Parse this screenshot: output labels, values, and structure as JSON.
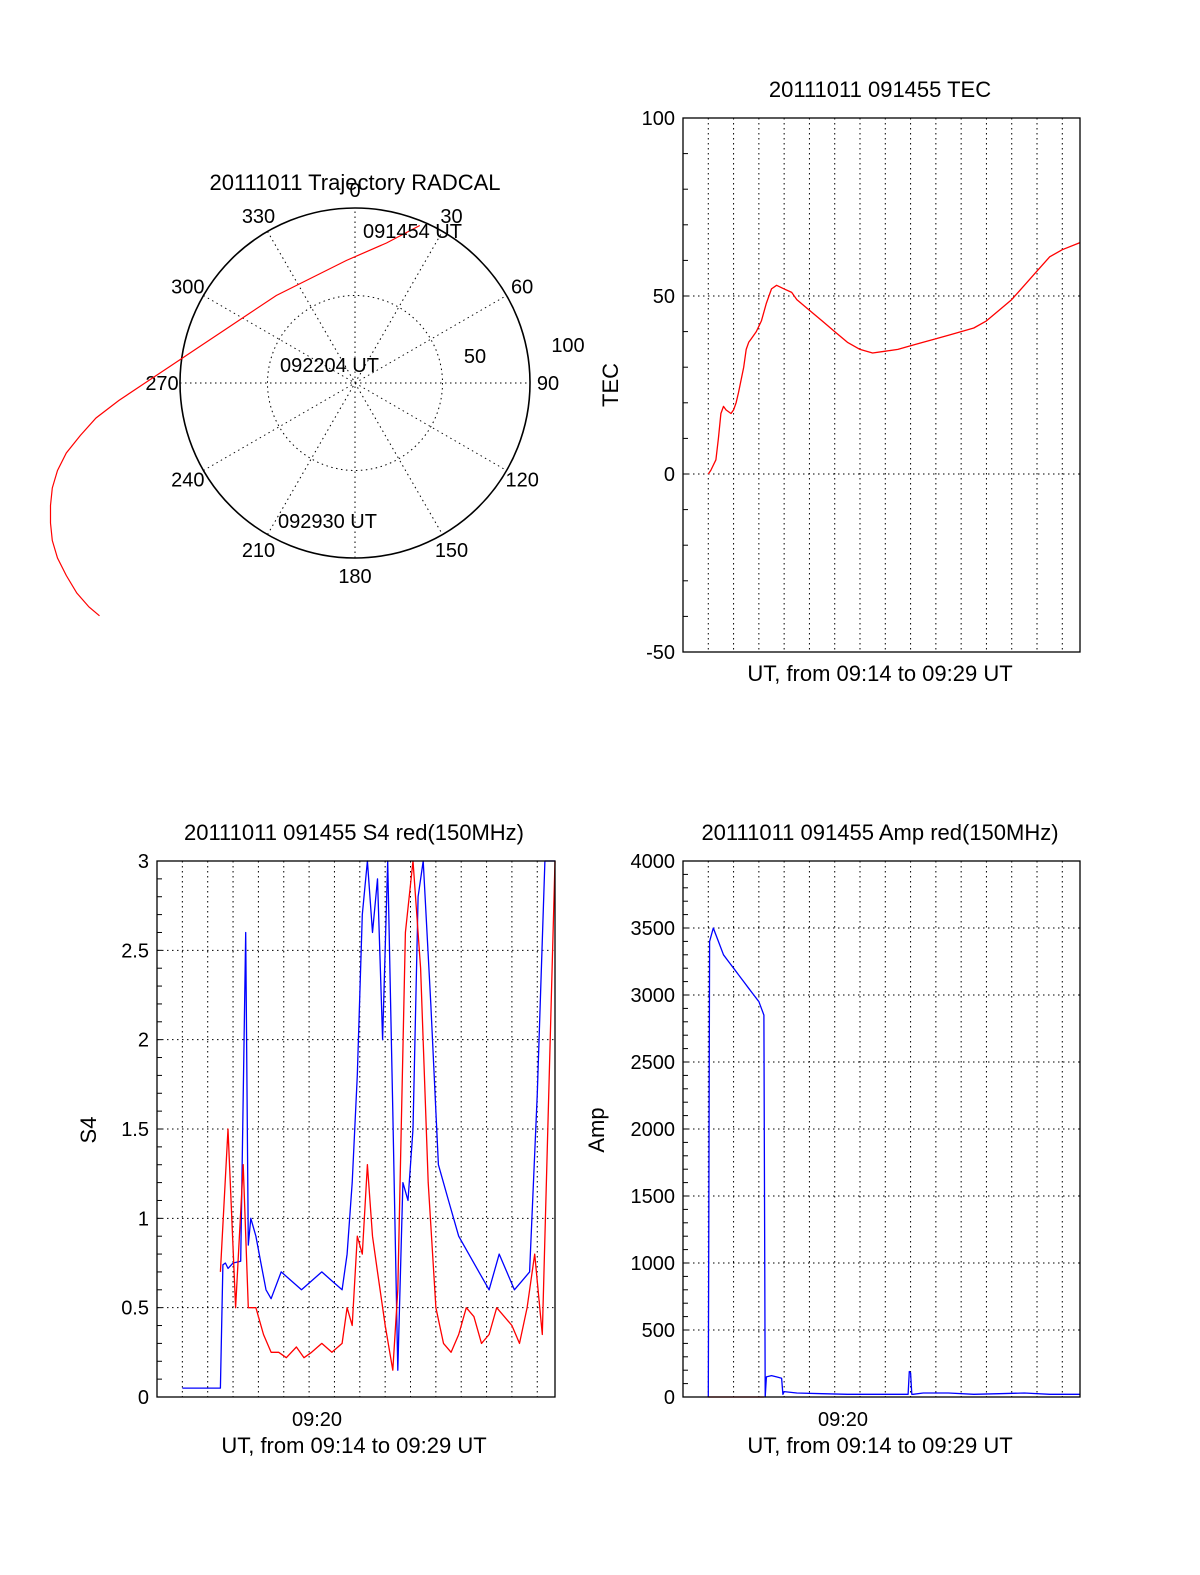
{
  "chart_data": [
    {
      "type": "polar-trajectory",
      "title": "20111011 Trajectory RADCAL",
      "angle_labels": [
        "0",
        "30",
        "60",
        "90",
        "120",
        "150",
        "180",
        "210",
        "240",
        "270",
        "300",
        "330"
      ],
      "radial_labels": [
        "50",
        "100"
      ],
      "r_max": 100,
      "annotations": [
        "091454 UT",
        "092204 UT",
        "092930 UT"
      ],
      "series": [
        {
          "color": "#ff0000",
          "points": [
            [
              37,
              90
            ],
            [
              18,
              80
            ],
            [
              -5,
              70
            ],
            [
              -25,
              60
            ],
            [
              -45,
              50
            ],
            [
              -60,
              40
            ],
            [
              -75,
              30
            ],
            [
              -90,
              20
            ],
            [
              -105,
              10
            ],
            [
              -120,
              0
            ],
            [
              -135,
              -10
            ],
            [
              -148,
              -20
            ],
            [
              -157,
              -30
            ],
            [
              -165,
              -40
            ],
            [
              -170,
              -50
            ],
            [
              -173,
              -60
            ],
            [
              -174,
              -70
            ],
            [
              -174,
              -80
            ],
            [
              -173,
              -90
            ],
            [
              -170,
              -100
            ],
            [
              -165,
              -110
            ],
            [
              -159,
              -120
            ],
            [
              -152,
              -128
            ],
            [
              -146,
              -133
            ]
          ]
        }
      ]
    },
    {
      "type": "line",
      "title": "20111011 091455 TEC",
      "xlabel": "UT, from 09:14 to 09:29 UT",
      "ylabel": "TEC",
      "x_range_min": [
        -0.5,
        15.2
      ],
      "ylim": [
        -50,
        100
      ],
      "yticks": [
        -50,
        0,
        50,
        100
      ],
      "grid": true,
      "series": [
        {
          "color": "#ff0000",
          "x": [
            0.5,
            0.6,
            0.8,
            0.9,
            1.0,
            1.1,
            1.2,
            1.4,
            1.5,
            1.6,
            1.7,
            1.9,
            2.0,
            2.1,
            2.2,
            2.4,
            2.6,
            2.8,
            3.0,
            3.2,
            3.5,
            3.8,
            4.0,
            4.5,
            5.0,
            5.5,
            6.0,
            6.5,
            7.0,
            7.5,
            8.0,
            8.5,
            9.0,
            9.5,
            10.0,
            10.5,
            11.0,
            11.5,
            12.0,
            12.5,
            13.0,
            13.5,
            14.0,
            14.5,
            15.2
          ],
          "y": [
            0,
            1,
            4,
            10,
            17,
            19,
            18,
            17,
            18,
            20,
            23,
            30,
            35,
            37,
            38,
            40,
            43,
            48,
            52,
            53,
            52,
            51,
            49,
            46,
            43,
            40,
            37,
            35,
            34,
            34.5,
            35,
            36,
            37,
            38,
            39,
            40,
            41,
            43,
            46,
            49,
            53,
            57,
            61,
            63,
            65
          ]
        }
      ]
    },
    {
      "type": "line",
      "title": "20111011 091455 S4 red(150MHz)",
      "xlabel": "UT, from 09:14 to 09:29 UT",
      "ylabel": "S4",
      "x_range_min": [
        -0.5,
        15.2
      ],
      "xtick_label": "09:20",
      "ylim": [
        0,
        3
      ],
      "yticks": [
        0,
        0.5,
        1,
        1.5,
        2,
        2.5,
        3
      ],
      "ytick_labels": [
        "0",
        "0.5",
        "1",
        "1.5",
        "2",
        "2.5",
        "3"
      ],
      "grid": true,
      "series": [
        {
          "color": "#0000ff",
          "x": [
            0.5,
            0.8,
            1.2,
            1.6,
            2.0,
            2.1,
            2.2,
            2.3,
            2.5,
            2.8,
            3.0,
            3.1,
            3.2,
            3.4,
            3.6,
            3.8,
            4.0,
            4.4,
            4.8,
            5.2,
            5.6,
            6.0,
            6.4,
            6.8,
            7.0,
            7.2,
            7.4,
            7.6,
            7.8,
            8.0,
            8.2,
            8.4,
            8.6,
            8.8,
            9.0,
            9.2,
            9.4,
            9.6,
            9.8,
            10.0,
            10.3,
            10.6,
            11.0,
            11.4,
            11.8,
            12.2,
            12.6,
            13.0,
            13.3,
            13.6,
            13.9,
            14.2,
            14.5,
            14.8,
            15.2
          ],
          "y": [
            0.05,
            0.05,
            0.05,
            0.05,
            0.05,
            0.74,
            0.75,
            0.72,
            0.75,
            0.76,
            2.6,
            0.85,
            1.0,
            0.9,
            0.75,
            0.6,
            0.55,
            0.7,
            0.65,
            0.6,
            0.65,
            0.7,
            0.65,
            0.6,
            0.8,
            1.2,
            1.8,
            2.7,
            3.0,
            2.6,
            2.9,
            2.0,
            3.0,
            1.6,
            0.15,
            1.2,
            1.1,
            1.5,
            2.8,
            3.0,
            2.2,
            1.3,
            1.1,
            0.9,
            0.8,
            0.7,
            0.6,
            0.8,
            0.7,
            0.6,
            0.65,
            0.7,
            1.7,
            3.0,
            3.0
          ]
        },
        {
          "color": "#ff0000",
          "x": [
            2.0,
            2.3,
            2.6,
            2.9,
            3.1,
            3.4,
            3.7,
            4.0,
            4.3,
            4.6,
            5.0,
            5.3,
            5.6,
            6.0,
            6.4,
            6.8,
            7.0,
            7.2,
            7.4,
            7.6,
            7.8,
            8.0,
            8.2,
            8.5,
            8.8,
            9.0,
            9.3,
            9.6,
            9.9,
            10.2,
            10.5,
            10.8,
            11.1,
            11.4,
            11.7,
            12.0,
            12.3,
            12.6,
            12.9,
            13.2,
            13.5,
            13.8,
            14.1,
            14.4,
            14.7,
            15.2
          ],
          "y": [
            0.7,
            1.5,
            0.5,
            1.3,
            0.5,
            0.5,
            0.35,
            0.25,
            0.25,
            0.22,
            0.28,
            0.22,
            0.25,
            0.3,
            0.25,
            0.3,
            0.5,
            0.4,
            0.9,
            0.8,
            1.3,
            0.9,
            0.7,
            0.4,
            0.15,
            0.6,
            2.6,
            3.0,
            2.4,
            1.2,
            0.5,
            0.3,
            0.25,
            0.35,
            0.5,
            0.45,
            0.3,
            0.35,
            0.5,
            0.45,
            0.4,
            0.3,
            0.5,
            0.8,
            0.35,
            3.0
          ]
        }
      ]
    },
    {
      "type": "line",
      "title": "20111011 091455 Amp red(150MHz)",
      "xlabel": "UT, from 09:14 to 09:29 UT",
      "ylabel": "Amp",
      "x_range_min": [
        -0.5,
        15.2
      ],
      "xtick_label": "09:20",
      "ylim": [
        0,
        4000
      ],
      "yticks": [
        0,
        500,
        1000,
        1500,
        2000,
        2500,
        3000,
        3500,
        4000
      ],
      "grid": true,
      "series": [
        {
          "color": "#0000ff",
          "x": [
            0.5,
            0.55,
            0.7,
            0.9,
            1.1,
            1.3,
            1.5,
            1.7,
            1.9,
            2.1,
            2.3,
            2.5,
            2.7,
            2.75,
            2.8,
            3.0,
            3.2,
            3.4,
            3.45,
            3.5,
            4.0,
            5.0,
            6.0,
            7.0,
            8.0,
            8.4,
            8.45,
            8.5,
            8.55,
            8.6,
            9.0,
            10.0,
            11.0,
            12.0,
            13.0,
            14.0,
            15.2
          ],
          "y": [
            0,
            3400,
            3500,
            3400,
            3300,
            3250,
            3200,
            3150,
            3100,
            3050,
            3000,
            2950,
            2850,
            0,
            150,
            160,
            150,
            140,
            20,
            40,
            30,
            25,
            20,
            20,
            20,
            20,
            190,
            180,
            20,
            20,
            30,
            30,
            20,
            25,
            30,
            20,
            20
          ]
        },
        {
          "color": "#ff0000",
          "x": [
            0.5,
            2.7
          ],
          "y": [
            0,
            0
          ]
        }
      ]
    }
  ]
}
